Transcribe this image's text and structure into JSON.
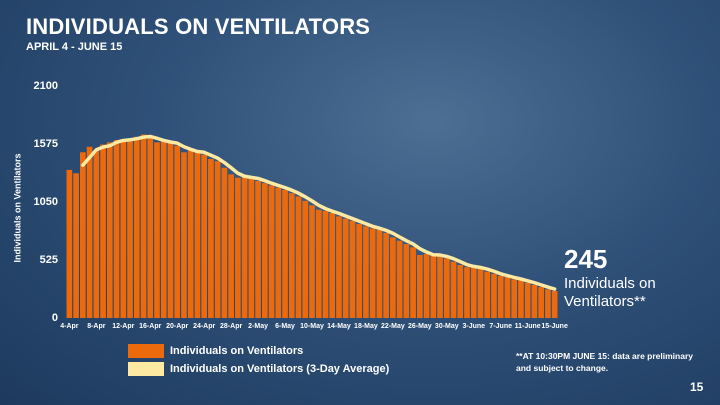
{
  "chart_data": {
    "type": "bar",
    "title": "INDIVIDUALS ON VENTILATORS",
    "subtitle": "APRIL 4 - JUNE 15",
    "y_label": "Individuals on Ventilators",
    "categories": [
      "4-Apr",
      null,
      null,
      null,
      "8-Apr",
      null,
      null,
      null,
      "12-Apr",
      null,
      null,
      null,
      "16-Apr",
      null,
      null,
      null,
      "20-Apr",
      null,
      null,
      null,
      "24-Apr",
      null,
      null,
      null,
      "28-Apr",
      null,
      null,
      null,
      "2-May",
      null,
      null,
      null,
      "6-May",
      null,
      null,
      null,
      "10-May",
      null,
      null,
      null,
      "14-May",
      null,
      null,
      null,
      "18-May",
      null,
      null,
      null,
      "22-May",
      null,
      null,
      null,
      "26-May",
      null,
      null,
      null,
      "30-May",
      null,
      null,
      null,
      "3-June",
      null,
      null,
      null,
      "7-June",
      null,
      null,
      null,
      "11-June",
      null,
      null,
      null,
      "15-June"
    ],
    "series": [
      {
        "name": "Individuals on Ventilators",
        "color": "#ec6a0c",
        "render": "bar",
        "values": [
          1340,
          1310,
          1500,
          1550,
          1520,
          1570,
          1590,
          1610,
          1620,
          1610,
          1640,
          1660,
          1630,
          1590,
          1600,
          1590,
          1560,
          1500,
          1520,
          1500,
          1480,
          1440,
          1420,
          1360,
          1300,
          1270,
          1280,
          1270,
          1240,
          1220,
          1200,
          1180,
          1160,
          1130,
          1100,
          1060,
          1020,
          980,
          970,
          950,
          920,
          900,
          880,
          850,
          830,
          810,
          800,
          770,
          730,
          700,
          670,
          640,
          570,
          580,
          570,
          560,
          540,
          510,
          480,
          460,
          460,
          450,
          420,
          400,
          380,
          370,
          350,
          340,
          320,
          300,
          280,
          260,
          245
        ]
      },
      {
        "name": "Individuals on Ventilators (3-Day Average)",
        "color": "#fde9a2",
        "render": "line",
        "values": [
          null,
          null,
          1383,
          1453,
          1523,
          1547,
          1560,
          1590,
          1607,
          1613,
          1623,
          1637,
          1643,
          1627,
          1607,
          1593,
          1583,
          1550,
          1527,
          1507,
          1500,
          1473,
          1447,
          1407,
          1360,
          1310,
          1283,
          1273,
          1263,
          1243,
          1220,
          1200,
          1180,
          1157,
          1130,
          1097,
          1060,
          1020,
          990,
          967,
          947,
          923,
          900,
          877,
          853,
          830,
          813,
          793,
          767,
          733,
          700,
          670,
          627,
          597,
          573,
          570,
          557,
          537,
          510,
          483,
          467,
          457,
          443,
          423,
          400,
          383,
          367,
          353,
          337,
          320,
          300,
          280,
          262
        ]
      }
    ],
    "ylim": [
      0,
      2100
    ],
    "yticks": [
      0,
      525,
      1050,
      1575,
      2100
    ],
    "grid": false,
    "callout_text": "Individuals on Ventilators**",
    "footnote": "**AT 10:30PM JUNE 15: data are preliminary and subject to change.",
    "page_number": "15"
  }
}
